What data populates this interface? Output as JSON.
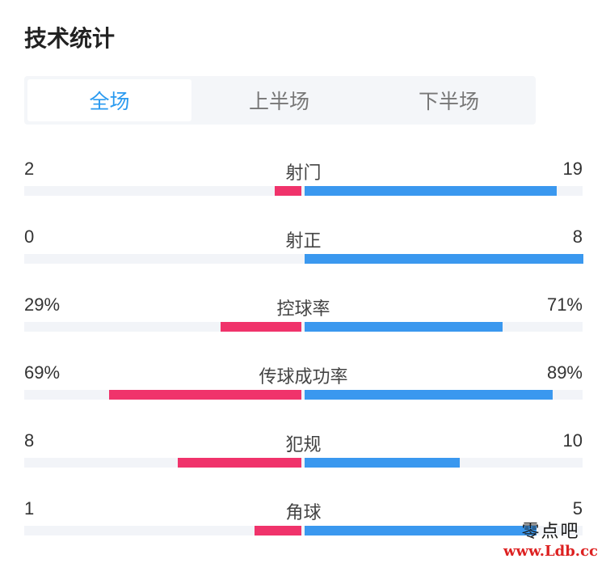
{
  "title": "技术统计",
  "tabs": [
    {
      "label": "全场",
      "active": true
    },
    {
      "label": "上半场",
      "active": false
    },
    {
      "label": "下半场",
      "active": false
    }
  ],
  "colors": {
    "left": "#f0336b",
    "right": "#3a98ef",
    "accent": "#2a9af0"
  },
  "stats": [
    {
      "name": "射门",
      "left": "2",
      "right": "19",
      "left_ratio": 0.095,
      "right_ratio": 0.905
    },
    {
      "name": "射正",
      "left": "0",
      "right": "8",
      "left_ratio": 0.0,
      "right_ratio": 1.0
    },
    {
      "name": "控球率",
      "left": "29%",
      "right": "71%",
      "left_ratio": 0.29,
      "right_ratio": 0.71
    },
    {
      "name": "传球成功率",
      "left": "69%",
      "right": "89%",
      "left_ratio": 0.69,
      "right_ratio": 0.89
    },
    {
      "name": "犯规",
      "left": "8",
      "right": "10",
      "left_ratio": 0.444,
      "right_ratio": 0.556
    },
    {
      "name": "角球",
      "left": "1",
      "right": "5",
      "left_ratio": 0.167,
      "right_ratio": 0.833
    }
  ],
  "watermark": {
    "line1": "零点吧",
    "line2": "www.Ldb.cc"
  }
}
